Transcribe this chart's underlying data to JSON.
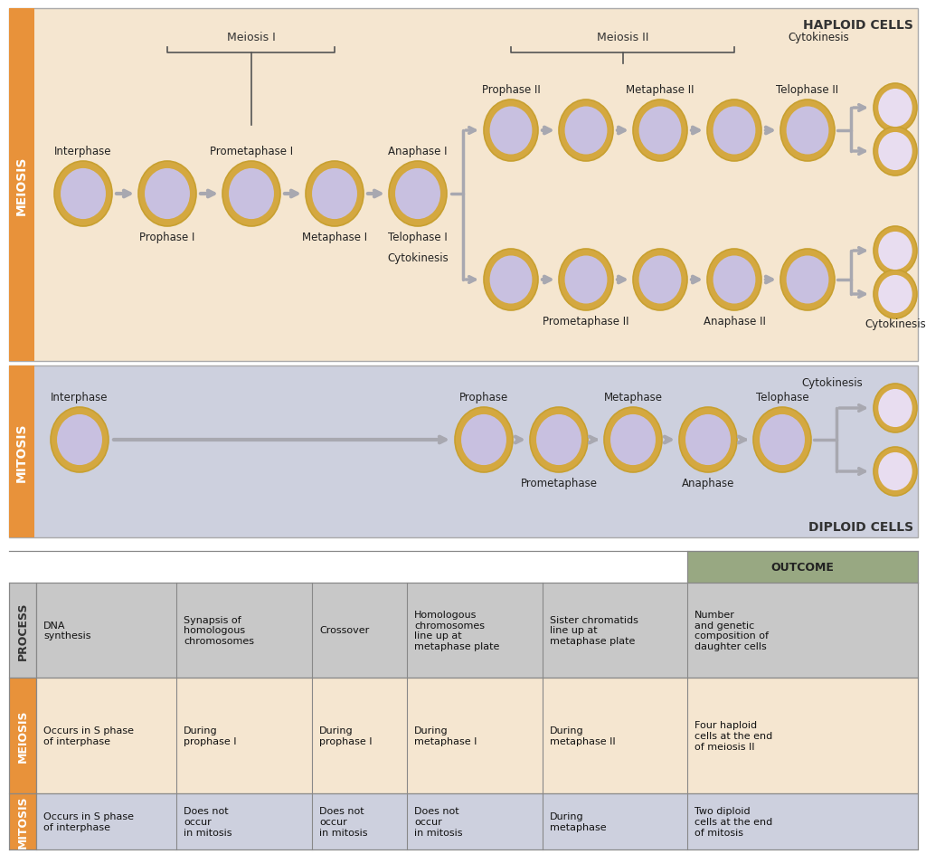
{
  "fig_width": 10.24,
  "fig_height": 9.45,
  "bg_color": "#ffffff",
  "meiosis_panel_bg": "#f5e6d0",
  "mitosis_panel_bg": "#cdd0de",
  "orange_label_bg": "#e8923a",
  "table_bg_process_col": "#c5c5c5",
  "table_bg_process_row": "#c8c8c8",
  "table_bg_meiosis_row": "#f5e6d0",
  "table_bg_mitosis_row": "#cdd0de",
  "table_bg_outcome_header": "#98a882",
  "table_border_color": "#888888",
  "haploid_label": "HAPLOID CELLS",
  "diploid_label": "DIPLOID CELLS",
  "meiosis_label": "MEIOSIS",
  "mitosis_label": "MITOSIS",
  "table_process_header": "PROCESS",
  "table_meiosis_header": "MEIOSIS",
  "table_mitosis_header": "MITOSIS",
  "table_outcome_header": "OUTCOME",
  "table_process_row": [
    "DNA\nsynthesis",
    "Synapsis of\nhomologous\nchromosomes",
    "Crossover",
    "Homologous\nchromosomes\nline up at\nmetaphase plate",
    "Sister chromatids\nline up at\nmetaphase plate",
    "Number\nand genetic\ncomposition of\ndaughter cells"
  ],
  "table_meiosis_row": [
    "Occurs in S phase\nof interphase",
    "During\nprophase I",
    "During\nprophase I",
    "During\nmetaphase I",
    "During\nmetaphase II",
    "Four haploid\ncells at the end\nof meiosis II"
  ],
  "table_mitosis_row": [
    "Occurs in S phase\nof interphase",
    "Does not\noccur\nin mitosis",
    "Does not\noccur\nin mitosis",
    "Does not\noccur\nin mitosis",
    "During\nmetaphase",
    "Two diploid\ncells at the end\nof mitosis"
  ],
  "cell_outer": "#d4a840",
  "cell_inner": "#c8c0e0",
  "cell_inner2": "#e8ddf0",
  "arrow_color": "#a0a0a8"
}
